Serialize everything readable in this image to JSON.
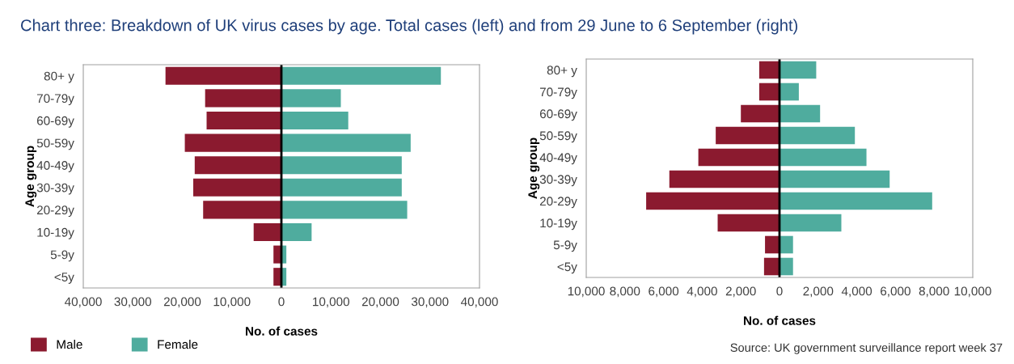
{
  "chart_data": [
    {
      "type": "bar",
      "orientation": "horizontal",
      "stacked": true,
      "title": "Chart three: Breakdown of UK virus cases by age. Total cases (left) and from 29 June to 6 September (right)",
      "xlabel": "No. of cases",
      "ylabel": "Age group",
      "categories": [
        "80+ y",
        "70-79y",
        "60-69y",
        "50-59y",
        "40-49y",
        "30-39y",
        "20-29y",
        "10-19y",
        "5-9y",
        "<5y"
      ],
      "series": [
        {
          "name": "Male",
          "color": "#8b1a2f",
          "values": [
            -23400,
            -15400,
            -15100,
            -19500,
            -17500,
            -17800,
            -15800,
            -5600,
            -1600,
            -1600
          ]
        },
        {
          "name": "Female",
          "color": "#4fac9e",
          "values": [
            32200,
            12000,
            13500,
            26100,
            24300,
            24300,
            25400,
            6100,
            1000,
            1000
          ]
        }
      ],
      "xlim": [
        -40000,
        40000
      ],
      "xticks": [
        {
          "value": -40000,
          "label": "40,000"
        },
        {
          "value": -30000,
          "label": "30,000"
        },
        {
          "value": -20000,
          "label": "20,000"
        },
        {
          "value": -10000,
          "label": "10,000"
        },
        0,
        {
          "value": 10000,
          "label": "10,000"
        },
        {
          "value": 20000,
          "label": "20,000"
        },
        {
          "value": 30000,
          "label": "30,000"
        },
        {
          "value": 40000,
          "label": "40,000"
        }
      ],
      "ref_lines": [
        {
          "axis": "x",
          "value": 0,
          "color": "#000000"
        }
      ],
      "legend": "bottom left"
    },
    {
      "type": "bar",
      "orientation": "horizontal",
      "stacked": true,
      "xlabel": "No. of cases",
      "ylabel": "Age group",
      "categories": [
        "80+ y",
        "70-79y",
        "60-69y",
        "50-59y",
        "40-49y",
        "30-39y",
        "20-29y",
        "10-19y",
        "5-9y",
        "<5y"
      ],
      "series": [
        {
          "color": "#8b1a2f",
          "values": [
            -1050,
            -1050,
            -2000,
            -3300,
            -4200,
            -5700,
            -6900,
            -3200,
            -750,
            -800
          ]
        },
        {
          "color": "#4fac9e",
          "values": [
            1900,
            1000,
            2100,
            3900,
            4500,
            5700,
            7900,
            3200,
            700,
            700
          ]
        }
      ],
      "xlim": [
        -10000,
        10000
      ],
      "xticks": [
        {
          "value": -10000,
          "label": "10,000"
        },
        {
          "value": -8000,
          "label": "8,000"
        },
        {
          "value": -6000,
          "label": "6,000"
        },
        {
          "value": -4000,
          "label": "4,000"
        },
        {
          "value": -2000,
          "label": "2,000"
        },
        0,
        {
          "value": 2000,
          "label": "2,000"
        },
        {
          "value": 4000,
          "label": "4,000"
        },
        {
          "value": 6000,
          "label": "6,000"
        },
        {
          "value": 8000,
          "label": "8,000"
        },
        {
          "value": 10000,
          "label": "10,000"
        }
      ],
      "ref_lines": [
        {
          "axis": "x",
          "value": 0,
          "color": "#000000"
        }
      ],
      "annotations": [
        "Source: UK government surveillance report week 37"
      ]
    }
  ]
}
